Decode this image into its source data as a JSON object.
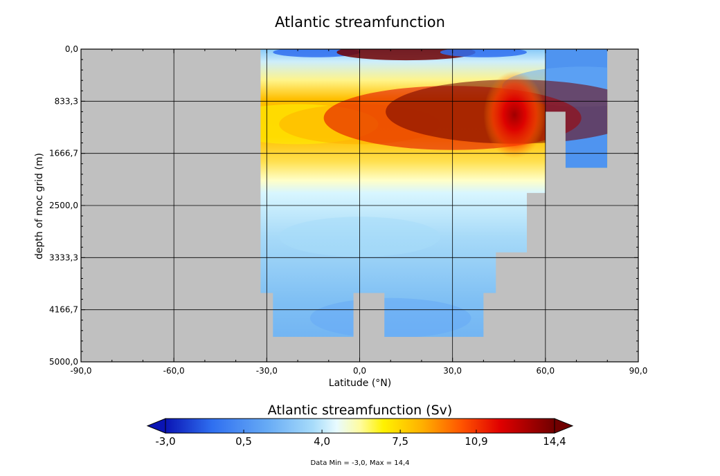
{
  "chart_data": {
    "type": "heatmap",
    "title": "Atlantic streamfunction",
    "xlabel": "Latitude (°N)",
    "ylabel": "depth of moc grid (m)",
    "xlim": [
      -90,
      90
    ],
    "ylim": [
      0,
      5000
    ],
    "y_inverted": true,
    "grid": true,
    "x_ticks": [
      -90,
      -60,
      -30,
      0,
      30,
      60,
      90
    ],
    "x_tick_labels": [
      "-90,0",
      "-60,0",
      "-30,0",
      "0,0",
      "30,0",
      "60,0",
      "90,0"
    ],
    "y_ticks": [
      0,
      833.3,
      1666.7,
      2500,
      3333.3,
      4166.7,
      5000
    ],
    "y_tick_labels": [
      "0,0",
      "833,3",
      "1666,7",
      "2500,0",
      "3333,3",
      "4166,7",
      "5000,0"
    ],
    "missing_color": "#c0c0c0",
    "colorbar": {
      "title": "Atlantic streamfunction (Sv)",
      "min": -3.0,
      "max": 14.4,
      "extend": "both",
      "tick_values": [
        -3.0,
        0.5,
        4.0,
        7.5,
        10.9,
        14.4
      ],
      "tick_labels": [
        "-3,0",
        "0,5",
        "4,0",
        "7,5",
        "10,9",
        "14,4"
      ],
      "colormap": [
        [
          0.0,
          "#0a14b4"
        ],
        [
          0.12,
          "#2f6ff0"
        ],
        [
          0.26,
          "#66aaf5"
        ],
        [
          0.38,
          "#a8dcfa"
        ],
        [
          0.44,
          "#e8fbff"
        ],
        [
          0.5,
          "#fffca0"
        ],
        [
          0.56,
          "#fff200"
        ],
        [
          0.66,
          "#ffb000"
        ],
        [
          0.76,
          "#ff5500"
        ],
        [
          0.86,
          "#e00000"
        ],
        [
          1.0,
          "#700000"
        ]
      ]
    },
    "data_min": -3.0,
    "data_max": 14.4,
    "footnote": "Data Min = -3,0, Max = 14,4",
    "ocean_mask": [
      {
        "lat": [
          -32,
          60
        ],
        "depth": [
          0,
          833.3
        ]
      },
      {
        "lat": [
          60,
          80
        ],
        "depth": [
          0,
          1000
        ]
      },
      {
        "lat": [
          -32,
          60
        ],
        "depth": [
          833.3,
          2300
        ]
      },
      {
        "lat": [
          66.5,
          80
        ],
        "depth": [
          1000,
          1900
        ]
      },
      {
        "lat": [
          -32,
          54
        ],
        "depth": [
          2300,
          3250
        ]
      },
      {
        "lat": [
          -32,
          44
        ],
        "depth": [
          3250,
          3900
        ]
      },
      {
        "lat": [
          -28,
          -2
        ],
        "depth": [
          3900,
          4600
        ]
      },
      {
        "lat": [
          8,
          40
        ],
        "depth": [
          3900,
          4600
        ]
      }
    ],
    "sample_values": [
      {
        "lat": -14,
        "depth": 50,
        "value": -3.0
      },
      {
        "lat": 15,
        "depth": 50,
        "value": 13.0
      },
      {
        "lat": 40,
        "depth": 50,
        "value": -1.5
      },
      {
        "lat": 72,
        "depth": 600,
        "value": -0.5
      },
      {
        "lat": -20,
        "depth": 1200,
        "value": 6.5
      },
      {
        "lat": 0,
        "depth": 1200,
        "value": 8.0
      },
      {
        "lat": 30,
        "depth": 1100,
        "value": 11.5
      },
      {
        "lat": 50,
        "depth": 1000,
        "value": 14.4
      },
      {
        "lat": 0,
        "depth": 3000,
        "value": 2.5
      },
      {
        "lat": 10,
        "depth": 4300,
        "value": 1.0
      }
    ]
  }
}
